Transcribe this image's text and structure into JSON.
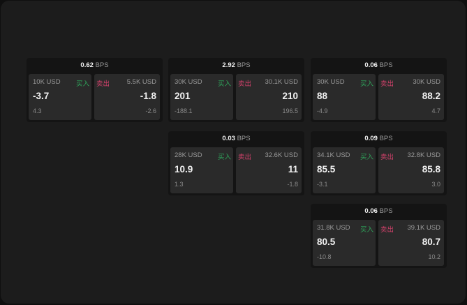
{
  "unit": "BPS",
  "buy_label": "买入",
  "sell_label": "卖出",
  "colors": {
    "buy": "#2fa35a",
    "sell": "#d2416b"
  },
  "cards": [
    {
      "spread": "0.62",
      "buy": {
        "size": "10K USD",
        "price": "-3.7",
        "change": "4.3"
      },
      "sell": {
        "size": "5.5K USD",
        "price": "-1.8",
        "change": "-2.6"
      }
    },
    {
      "spread": "2.92",
      "buy": {
        "size": "30K USD",
        "price": "201",
        "change": "-188.1"
      },
      "sell": {
        "size": "30.1K USD",
        "price": "210",
        "change": "196.5"
      }
    },
    {
      "spread": "0.06",
      "buy": {
        "size": "30K USD",
        "price": "88",
        "change": "-4.9"
      },
      "sell": {
        "size": "30K USD",
        "price": "88.2",
        "change": "4.7"
      }
    },
    {
      "spread": "0.03",
      "buy": {
        "size": "28K USD",
        "price": "10.9",
        "change": "1.3"
      },
      "sell": {
        "size": "32.6K USD",
        "price": "11",
        "change": "-1.8"
      }
    },
    {
      "spread": "0.09",
      "buy": {
        "size": "34.1K USD",
        "price": "85.5",
        "change": "-3.1"
      },
      "sell": {
        "size": "32.8K USD",
        "price": "85.8",
        "change": "3.0"
      }
    },
    {
      "spread": "0.06",
      "buy": {
        "size": "31.8K USD",
        "price": "80.5",
        "change": "-10.8"
      },
      "sell": {
        "size": "39.1K USD",
        "price": "80.7",
        "change": "10.2"
      }
    }
  ]
}
